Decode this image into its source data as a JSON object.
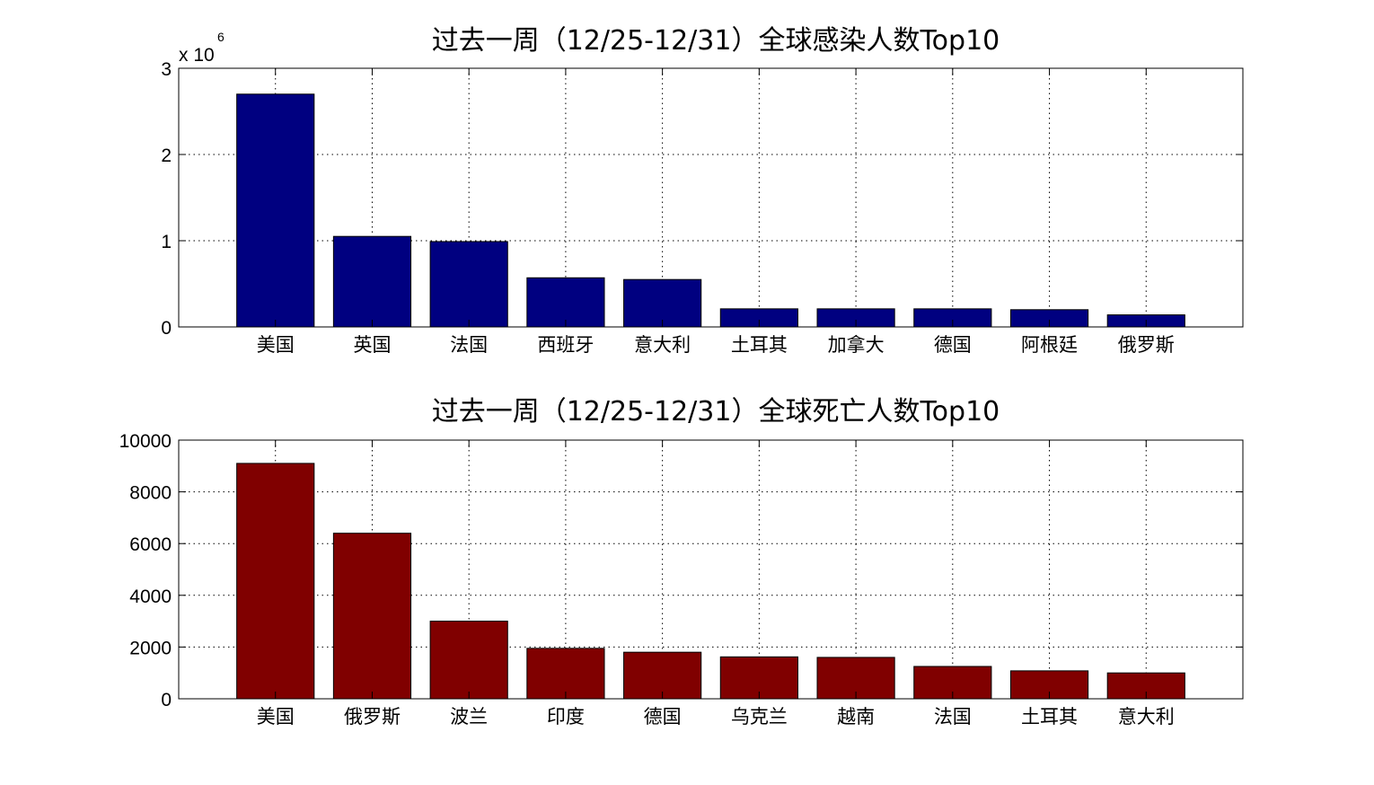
{
  "chart_data": [
    {
      "type": "bar",
      "title": "过去一周（12/25-12/31）全球感染人数Top10",
      "xlabel": "",
      "ylabel": "",
      "categories": [
        "美国",
        "英国",
        "法国",
        "西班牙",
        "意大利",
        "土耳其",
        "加拿大",
        "德国",
        "阿根廷",
        "俄罗斯"
      ],
      "values": [
        2700000,
        1050000,
        990000,
        570000,
        550000,
        210000,
        210000,
        210000,
        200000,
        140000
      ],
      "ylim": [
        0,
        3000000
      ],
      "yticks": [
        0,
        1,
        2,
        3
      ],
      "ytick_labels": [
        "0",
        "1",
        "2",
        "3"
      ],
      "exponent_base": "x 10",
      "exponent_power": "6",
      "bar_color": "#000080",
      "grid": true,
      "legend": "none"
    },
    {
      "type": "bar",
      "title": "过去一周（12/25-12/31）全球死亡人数Top10",
      "xlabel": "",
      "ylabel": "",
      "categories": [
        "美国",
        "俄罗斯",
        "波兰",
        "印度",
        "德国",
        "乌克兰",
        "越南",
        "法国",
        "土耳其",
        "意大利"
      ],
      "values": [
        9100,
        6400,
        3000,
        1950,
        1800,
        1620,
        1600,
        1250,
        1080,
        1000
      ],
      "ylim": [
        0,
        10000
      ],
      "yticks": [
        0,
        2000,
        4000,
        6000,
        8000,
        10000
      ],
      "ytick_labels": [
        "0",
        "2000",
        "4000",
        "6000",
        "8000",
        "10000"
      ],
      "bar_color": "#800000",
      "grid": true,
      "legend": "none"
    }
  ]
}
